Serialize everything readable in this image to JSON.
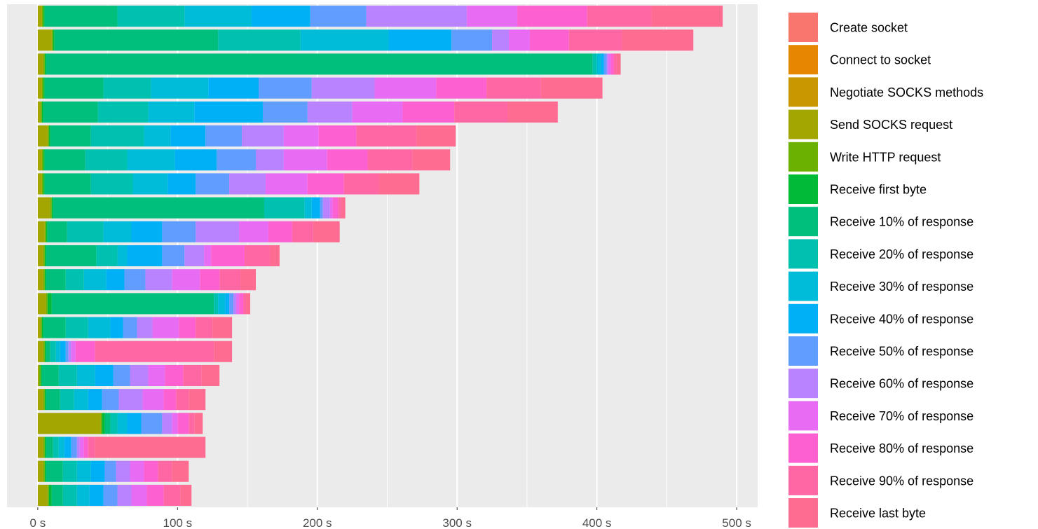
{
  "chart_data": {
    "type": "bar",
    "orientation": "horizontal",
    "stacked": true,
    "title": "",
    "xlabel": "",
    "ylabel": "",
    "xlim": [
      -22,
      515
    ],
    "xticks": [
      {
        "value": 0,
        "label": "0 s"
      },
      {
        "value": 100,
        "label": "100 s"
      },
      {
        "value": 200,
        "label": "200 s"
      },
      {
        "value": 300,
        "label": "300 s"
      },
      {
        "value": 400,
        "label": "400 s"
      },
      {
        "value": 500,
        "label": "500 s"
      }
    ],
    "grid": true,
    "legend_position": "right",
    "series": [
      {
        "name": "Create socket",
        "color": "#F8766D"
      },
      {
        "name": "Connect to socket",
        "color": "#E58700"
      },
      {
        "name": "Negotiate SOCKS methods",
        "color": "#C99800"
      },
      {
        "name": "Send SOCKS request",
        "color": "#A3A500"
      },
      {
        "name": "Write HTTP request",
        "color": "#6BB100"
      },
      {
        "name": "Receive first byte",
        "color": "#00BA38"
      },
      {
        "name": "Receive 10% of response",
        "color": "#00BF7D"
      },
      {
        "name": "Receive 20% of response",
        "color": "#00C0AF"
      },
      {
        "name": "Receive 30% of response",
        "color": "#00BCD8"
      },
      {
        "name": "Receive 40% of response",
        "color": "#00B0F6"
      },
      {
        "name": "Receive 50% of response",
        "color": "#619CFF"
      },
      {
        "name": "Receive 60% of response",
        "color": "#B983FF"
      },
      {
        "name": "Receive 70% of response",
        "color": "#E76BF3"
      },
      {
        "name": "Receive 80% of response",
        "color": "#FD61D1"
      },
      {
        "name": "Receive 90% of response",
        "color": "#FF67A4"
      },
      {
        "name": "Receive last byte",
        "color": "#FF6C91"
      }
    ],
    "bars": [
      [
        0,
        0,
        0,
        3,
        1,
        1,
        52,
        48,
        48,
        42,
        40,
        72,
        36,
        50,
        46,
        51
      ],
      [
        0,
        0,
        0,
        10,
        1,
        1,
        117,
        59,
        63,
        45,
        29,
        12,
        15,
        28,
        38,
        51
      ],
      [
        0,
        0,
        0,
        4,
        1,
        1,
        391,
        3,
        3,
        2,
        2,
        1,
        2,
        2,
        2,
        3
      ],
      [
        0,
        0,
        0,
        3,
        1,
        1,
        42,
        34,
        41,
        36,
        38,
        45,
        44,
        36,
        39,
        44
      ],
      [
        0,
        0,
        0,
        2,
        1,
        1,
        39,
        36,
        33,
        49,
        32,
        32,
        36,
        37,
        38,
        36
      ],
      [
        0,
        0,
        0,
        7,
        1,
        1,
        29,
        38,
        19,
        25,
        26,
        30,
        25,
        27,
        43,
        28
      ],
      [
        0,
        0,
        0,
        3,
        1,
        1,
        29,
        30,
        34,
        30,
        28,
        20,
        31,
        29,
        32,
        27
      ],
      [
        0,
        0,
        0,
        3,
        1,
        1,
        33,
        30,
        25,
        20,
        24,
        26,
        30,
        26,
        25,
        29
      ],
      [
        0,
        0,
        0,
        9,
        1,
        1,
        151,
        29,
        5,
        6,
        2,
        5,
        2,
        4,
        2,
        3
      ],
      [
        0,
        0,
        0,
        5,
        1,
        1,
        14,
        26,
        20,
        22,
        24,
        31,
        21,
        17,
        15,
        19
      ],
      [
        0,
        0,
        0,
        4,
        1,
        1,
        36,
        15,
        7,
        25,
        16,
        14,
        5,
        24,
        18,
        7
      ],
      [
        0,
        0,
        0,
        4,
        1,
        1,
        14,
        13,
        16,
        13,
        15,
        19,
        20,
        14,
        15,
        11
      ],
      [
        0,
        0,
        0,
        6,
        1,
        3,
        116,
        3,
        5,
        3,
        3,
        2,
        2,
        3,
        2,
        3
      ],
      [
        0,
        0,
        0,
        2,
        1,
        1,
        16,
        16,
        16,
        9,
        10,
        11,
        19,
        12,
        12,
        14
      ],
      [
        0,
        0,
        0,
        4,
        1,
        1,
        3,
        4,
        3,
        4,
        2,
        2,
        3,
        14,
        85,
        13
      ],
      [
        0,
        0,
        0,
        1,
        1,
        1,
        12,
        13,
        13,
        13,
        12,
        13,
        12,
        13,
        13,
        13
      ],
      [
        0,
        0,
        0,
        4,
        1,
        1,
        10,
        10,
        10,
        10,
        12,
        17,
        15,
        9,
        9,
        12
      ],
      [
        0,
        0,
        0,
        45,
        1,
        2,
        4,
        5,
        7,
        10,
        15,
        7,
        4,
        8,
        4,
        6
      ],
      [
        0,
        0,
        0,
        4,
        1,
        1,
        5,
        4,
        4,
        5,
        4,
        2,
        3,
        3,
        5,
        79
      ],
      [
        0,
        0,
        0,
        4,
        1,
        1,
        12,
        10,
        10,
        10,
        8,
        10,
        10,
        10,
        10,
        12
      ],
      [
        0,
        0,
        0,
        7,
        1,
        2,
        8,
        10,
        9,
        10,
        10,
        10,
        11,
        12,
        12,
        8
      ]
    ]
  }
}
